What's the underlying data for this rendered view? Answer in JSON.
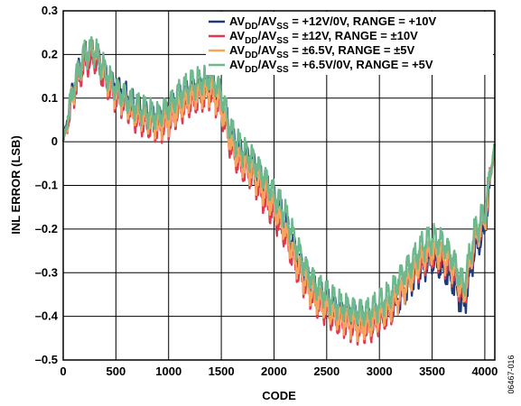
{
  "chart_data": {
    "type": "line",
    "title": "",
    "xlabel": "CODE",
    "ylabel": "INL ERROR (LSB)",
    "xlim": [
      0,
      4095
    ],
    "ylim": [
      -0.5,
      0.3
    ],
    "xticks": [
      0,
      500,
      1000,
      1500,
      2000,
      2500,
      3000,
      3500,
      4000
    ],
    "xtick_labels": [
      "0",
      "500",
      "1000",
      "1500",
      "2000",
      "2500",
      "3000",
      "3500",
      "4000"
    ],
    "yticks": [
      -0.5,
      -0.4,
      -0.3,
      -0.2,
      -0.1,
      0,
      0.1,
      0.2,
      0.3
    ],
    "ytick_labels": [
      "–0.5",
      "–0.4",
      "–0.3",
      "–0.2",
      "–0.1",
      "0",
      "0.1",
      "0.2",
      "0.3"
    ],
    "grid": true,
    "legend_position": "top-right",
    "series": [
      {
        "legend": {
          "main": "AV",
          "sub1": "DD",
          "mid": "/AV",
          "sub2": "SS",
          "rest": " = +12V/0V, RANGE = +10V"
        },
        "color": "#1f3a7a",
        "x": [
          0,
          100,
          200,
          300,
          400,
          500,
          600,
          700,
          800,
          900,
          1000,
          1100,
          1200,
          1300,
          1400,
          1500,
          1600,
          1700,
          1800,
          1900,
          2000,
          2100,
          2200,
          2300,
          2400,
          2500,
          2600,
          2700,
          2800,
          2900,
          3000,
          3100,
          3200,
          3300,
          3400,
          3500,
          3600,
          3700,
          3800,
          3900,
          4000,
          4095
        ],
        "y": [
          0.0,
          0.12,
          0.19,
          0.2,
          0.15,
          0.12,
          0.1,
          0.07,
          0.06,
          0.05,
          0.06,
          0.09,
          0.11,
          0.12,
          0.13,
          0.09,
          0.0,
          -0.03,
          -0.05,
          -0.1,
          -0.14,
          -0.18,
          -0.25,
          -0.31,
          -0.35,
          -0.37,
          -0.39,
          -0.4,
          -0.41,
          -0.42,
          -0.4,
          -0.39,
          -0.36,
          -0.32,
          -0.29,
          -0.27,
          -0.29,
          -0.32,
          -0.38,
          -0.25,
          -0.2,
          0.0
        ]
      },
      {
        "legend": {
          "main": "AV",
          "sub1": "DD",
          "mid": "/AV",
          "sub2": "SS",
          "rest": " = ±12V, RANGE = ±10V"
        },
        "color": "#e0384f",
        "x": [
          0,
          100,
          200,
          300,
          400,
          500,
          600,
          700,
          800,
          900,
          1000,
          1100,
          1200,
          1300,
          1400,
          1500,
          1600,
          1700,
          1800,
          1900,
          2000,
          2100,
          2200,
          2300,
          2400,
          2500,
          2600,
          2700,
          2800,
          2900,
          3000,
          3100,
          3200,
          3300,
          3400,
          3500,
          3600,
          3700,
          3800,
          3900,
          4000,
          4095
        ],
        "y": [
          0.0,
          0.11,
          0.18,
          0.19,
          0.14,
          0.1,
          0.08,
          0.05,
          0.04,
          0.03,
          0.04,
          0.07,
          0.09,
          0.1,
          0.11,
          0.07,
          -0.02,
          -0.06,
          -0.08,
          -0.13,
          -0.17,
          -0.21,
          -0.28,
          -0.33,
          -0.37,
          -0.39,
          -0.41,
          -0.42,
          -0.43,
          -0.43,
          -0.41,
          -0.39,
          -0.35,
          -0.31,
          -0.28,
          -0.26,
          -0.27,
          -0.3,
          -0.36,
          -0.23,
          -0.18,
          0.0
        ]
      },
      {
        "legend": {
          "main": "AV",
          "sub1": "DD",
          "mid": "/AV",
          "sub2": "SS",
          "rest": " = ±6.5V, RANGE = ±5V"
        },
        "color": "#f6a35c",
        "x": [
          0,
          100,
          200,
          300,
          400,
          500,
          600,
          700,
          800,
          900,
          1000,
          1100,
          1200,
          1300,
          1400,
          1500,
          1600,
          1700,
          1800,
          1900,
          2000,
          2100,
          2200,
          2300,
          2400,
          2500,
          2600,
          2700,
          2800,
          2900,
          3000,
          3100,
          3200,
          3300,
          3400,
          3500,
          3600,
          3700,
          3800,
          3900,
          4000,
          4095
        ],
        "y": [
          0.0,
          0.12,
          0.2,
          0.21,
          0.15,
          0.11,
          0.09,
          0.06,
          0.05,
          0.04,
          0.05,
          0.08,
          0.1,
          0.11,
          0.12,
          0.08,
          -0.01,
          -0.05,
          -0.07,
          -0.11,
          -0.15,
          -0.2,
          -0.27,
          -0.32,
          -0.36,
          -0.38,
          -0.4,
          -0.41,
          -0.42,
          -0.42,
          -0.4,
          -0.38,
          -0.35,
          -0.31,
          -0.27,
          -0.25,
          -0.26,
          -0.29,
          -0.35,
          -0.23,
          -0.18,
          0.0
        ]
      },
      {
        "legend": {
          "main": "AV",
          "sub1": "DD",
          "mid": "/AV",
          "sub2": "SS",
          "rest": " = +6.5V/0V, RANGE = +5V"
        },
        "color": "#6db88c",
        "x": [
          0,
          100,
          200,
          300,
          400,
          500,
          600,
          700,
          800,
          900,
          1000,
          1100,
          1200,
          1300,
          1400,
          1500,
          1600,
          1700,
          1800,
          1900,
          2000,
          2100,
          2200,
          2300,
          2400,
          2500,
          2600,
          2700,
          2800,
          2900,
          3000,
          3100,
          3200,
          3300,
          3400,
          3500,
          3600,
          3700,
          3800,
          3900,
          4000,
          4095
        ],
        "y": [
          0.0,
          0.13,
          0.2,
          0.21,
          0.16,
          0.12,
          0.1,
          0.08,
          0.07,
          0.06,
          0.08,
          0.11,
          0.13,
          0.14,
          0.15,
          0.11,
          0.02,
          -0.02,
          -0.04,
          -0.08,
          -0.12,
          -0.16,
          -0.23,
          -0.29,
          -0.33,
          -0.35,
          -0.37,
          -0.38,
          -0.39,
          -0.39,
          -0.37,
          -0.35,
          -0.31,
          -0.28,
          -0.24,
          -0.22,
          -0.23,
          -0.27,
          -0.33,
          -0.21,
          -0.16,
          0.0
        ]
      }
    ]
  },
  "figure_id": "06467-016"
}
